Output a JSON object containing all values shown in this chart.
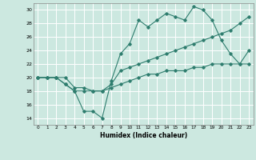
{
  "line1_x": [
    0,
    1,
    2,
    3,
    4,
    5,
    6,
    7,
    8,
    9,
    10,
    11,
    12,
    13,
    14,
    15,
    16,
    17,
    18,
    19,
    20,
    21,
    22,
    23
  ],
  "line1_y": [
    20,
    20,
    20,
    19,
    18,
    15,
    15,
    14,
    19.5,
    23.5,
    25,
    28.5,
    27.5,
    28.5,
    29.5,
    29,
    28.5,
    30.5,
    30,
    28.5,
    25.5,
    23.5,
    22,
    24
  ],
  "line2_x": [
    0,
    1,
    2,
    3,
    4,
    5,
    6,
    7,
    8,
    9,
    10,
    11,
    12,
    13,
    14,
    15,
    16,
    17,
    18,
    19,
    20,
    21,
    22,
    23
  ],
  "line2_y": [
    20,
    20,
    20,
    20,
    18.5,
    18.5,
    18,
    18,
    19,
    21,
    21.5,
    22,
    22.5,
    23,
    23.5,
    24,
    24.5,
    25,
    25.5,
    26,
    26.5,
    27,
    28,
    29
  ],
  "line3_x": [
    0,
    1,
    2,
    3,
    4,
    5,
    6,
    7,
    8,
    9,
    10,
    11,
    12,
    13,
    14,
    15,
    16,
    17,
    18,
    19,
    20,
    21,
    22,
    23
  ],
  "line3_y": [
    20,
    20,
    20,
    19,
    18,
    18,
    18,
    18,
    18.5,
    19,
    19.5,
    20,
    20.5,
    20.5,
    21,
    21,
    21,
    21.5,
    21.5,
    22,
    22,
    22,
    22,
    22
  ],
  "line_color": "#2e7d6e",
  "bg_color": "#cce8e0",
  "grid_color": "#ffffff",
  "xlabel": "Humidex (Indice chaleur)",
  "xlim": [
    -0.5,
    23.5
  ],
  "ylim": [
    13,
    31
  ],
  "yticks": [
    14,
    16,
    18,
    20,
    22,
    24,
    26,
    28,
    30
  ],
  "xticks": [
    0,
    1,
    2,
    3,
    4,
    5,
    6,
    7,
    8,
    9,
    10,
    11,
    12,
    13,
    14,
    15,
    16,
    17,
    18,
    19,
    20,
    21,
    22,
    23
  ]
}
